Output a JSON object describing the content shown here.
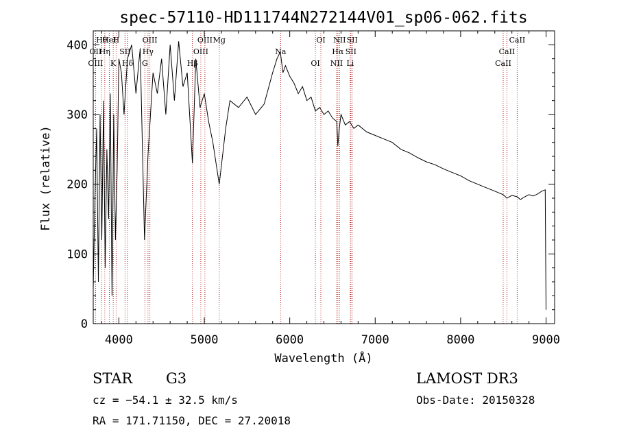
{
  "chart_data": {
    "type": "line",
    "title": "spec-57110-HD111744N272144V01_sp06-062.fits",
    "xlabel": "Wavelength (Å)",
    "ylabel": "Flux (relative)",
    "xlim": [
      3700,
      9100
    ],
    "ylim": [
      0,
      420
    ],
    "xticks": [
      4000,
      5000,
      6000,
      7000,
      8000,
      9000
    ],
    "xtick_labels": [
      "4000",
      "5000",
      "6000",
      "7000",
      "8000",
      "9000"
    ],
    "yticks": [
      0,
      100,
      200,
      300,
      400
    ],
    "ytick_labels": [
      "0",
      "100",
      "200",
      "300",
      "400"
    ],
    "series": [
      {
        "name": "flux",
        "color": "#000000",
        "x": [
          3700,
          3720,
          3740,
          3760,
          3780,
          3800,
          3820,
          3840,
          3860,
          3880,
          3900,
          3920,
          3940,
          3960,
          3980,
          4000,
          4030,
          4060,
          4100,
          4150,
          4200,
          4250,
          4300,
          4340,
          4400,
          4450,
          4500,
          4550,
          4600,
          4650,
          4700,
          4750,
          4800,
          4861,
          4900,
          4950,
          5000,
          5050,
          5100,
          5175,
          5250,
          5300,
          5400,
          5500,
          5600,
          5700,
          5800,
          5850,
          5890,
          5920,
          5950,
          6000,
          6050,
          6100,
          6150,
          6200,
          6250,
          6300,
          6350,
          6400,
          6450,
          6500,
          6550,
          6563,
          6580,
          6600,
          6650,
          6700,
          6750,
          6800,
          6900,
          7000,
          7100,
          7200,
          7300,
          7400,
          7500,
          7600,
          7700,
          7800,
          7900,
          8000,
          8100,
          8200,
          8300,
          8400,
          8498,
          8542,
          8600,
          8662,
          8700,
          8750,
          8800,
          8850,
          8900,
          8950,
          8990,
          9000
        ],
        "y": [
          50,
          180,
          280,
          60,
          300,
          120,
          320,
          80,
          250,
          150,
          330,
          40,
          300,
          120,
          220,
          380,
          360,
          300,
          380,
          400,
          330,
          395,
          120,
          240,
          360,
          330,
          380,
          300,
          400,
          320,
          405,
          340,
          360,
          230,
          380,
          310,
          330,
          290,
          260,
          200,
          280,
          320,
          310,
          325,
          300,
          315,
          360,
          380,
          390,
          360,
          370,
          355,
          345,
          330,
          340,
          320,
          325,
          305,
          310,
          300,
          305,
          295,
          290,
          255,
          280,
          300,
          285,
          290,
          280,
          285,
          275,
          270,
          265,
          260,
          250,
          245,
          238,
          232,
          228,
          222,
          217,
          212,
          205,
          200,
          195,
          190,
          185,
          180,
          184,
          182,
          178,
          182,
          185,
          183,
          186,
          190,
          192,
          20
        ]
      }
    ],
    "line_color": "#b22222",
    "lines": [
      {
        "label": "Hθ",
        "wavelength": 3798
      },
      {
        "label": "OII",
        "wavelength": 3727
      },
      {
        "label": "OIII",
        "wavelength": 3727
      },
      {
        "label": "HeI",
        "wavelength": 3889
      },
      {
        "label": "Hη",
        "wavelength": 3835
      },
      {
        "label": "K",
        "wavelength": 3934
      },
      {
        "label": "H",
        "wavelength": 3968
      },
      {
        "label": "SII",
        "wavelength": 4072
      },
      {
        "label": "Hδ",
        "wavelength": 4102
      },
      {
        "label": "OIII",
        "wavelength": 4363
      },
      {
        "label": "Hγ",
        "wavelength": 4341
      },
      {
        "label": "G",
        "wavelength": 4305
      },
      {
        "label": "OIII",
        "wavelength": 5007
      },
      {
        "label": "OIII",
        "wavelength": 4959
      },
      {
        "label": "Hβ",
        "wavelength": 4861
      },
      {
        "label": "Mg",
        "wavelength": 5175
      },
      {
        "label": "Na",
        "wavelength": 5893
      },
      {
        "label": "OI",
        "wavelength": 6300
      },
      {
        "label": "OI",
        "wavelength": 6364
      },
      {
        "label": "Hα",
        "wavelength": 6563
      },
      {
        "label": "NII",
        "wavelength": 6548
      },
      {
        "label": "NII",
        "wavelength": 6583
      },
      {
        "label": "SII",
        "wavelength": 6716
      },
      {
        "label": "Li",
        "wavelength": 6708
      },
      {
        "label": "SII",
        "wavelength": 6731
      },
      {
        "label": "CaII",
        "wavelength": 8542
      },
      {
        "label": "CaII",
        "wavelength": 8498
      },
      {
        "label": "CaII",
        "wavelength": 8662
      }
    ]
  },
  "info": {
    "object_class": "STAR",
    "subclass": "G3",
    "survey": "LAMOST DR3",
    "cz": "cz = −54.1 ± 32.5 km/s",
    "obs_date": "Obs-Date: 20150328",
    "coords": "RA = 171.71150, DEC =  27.20018"
  }
}
